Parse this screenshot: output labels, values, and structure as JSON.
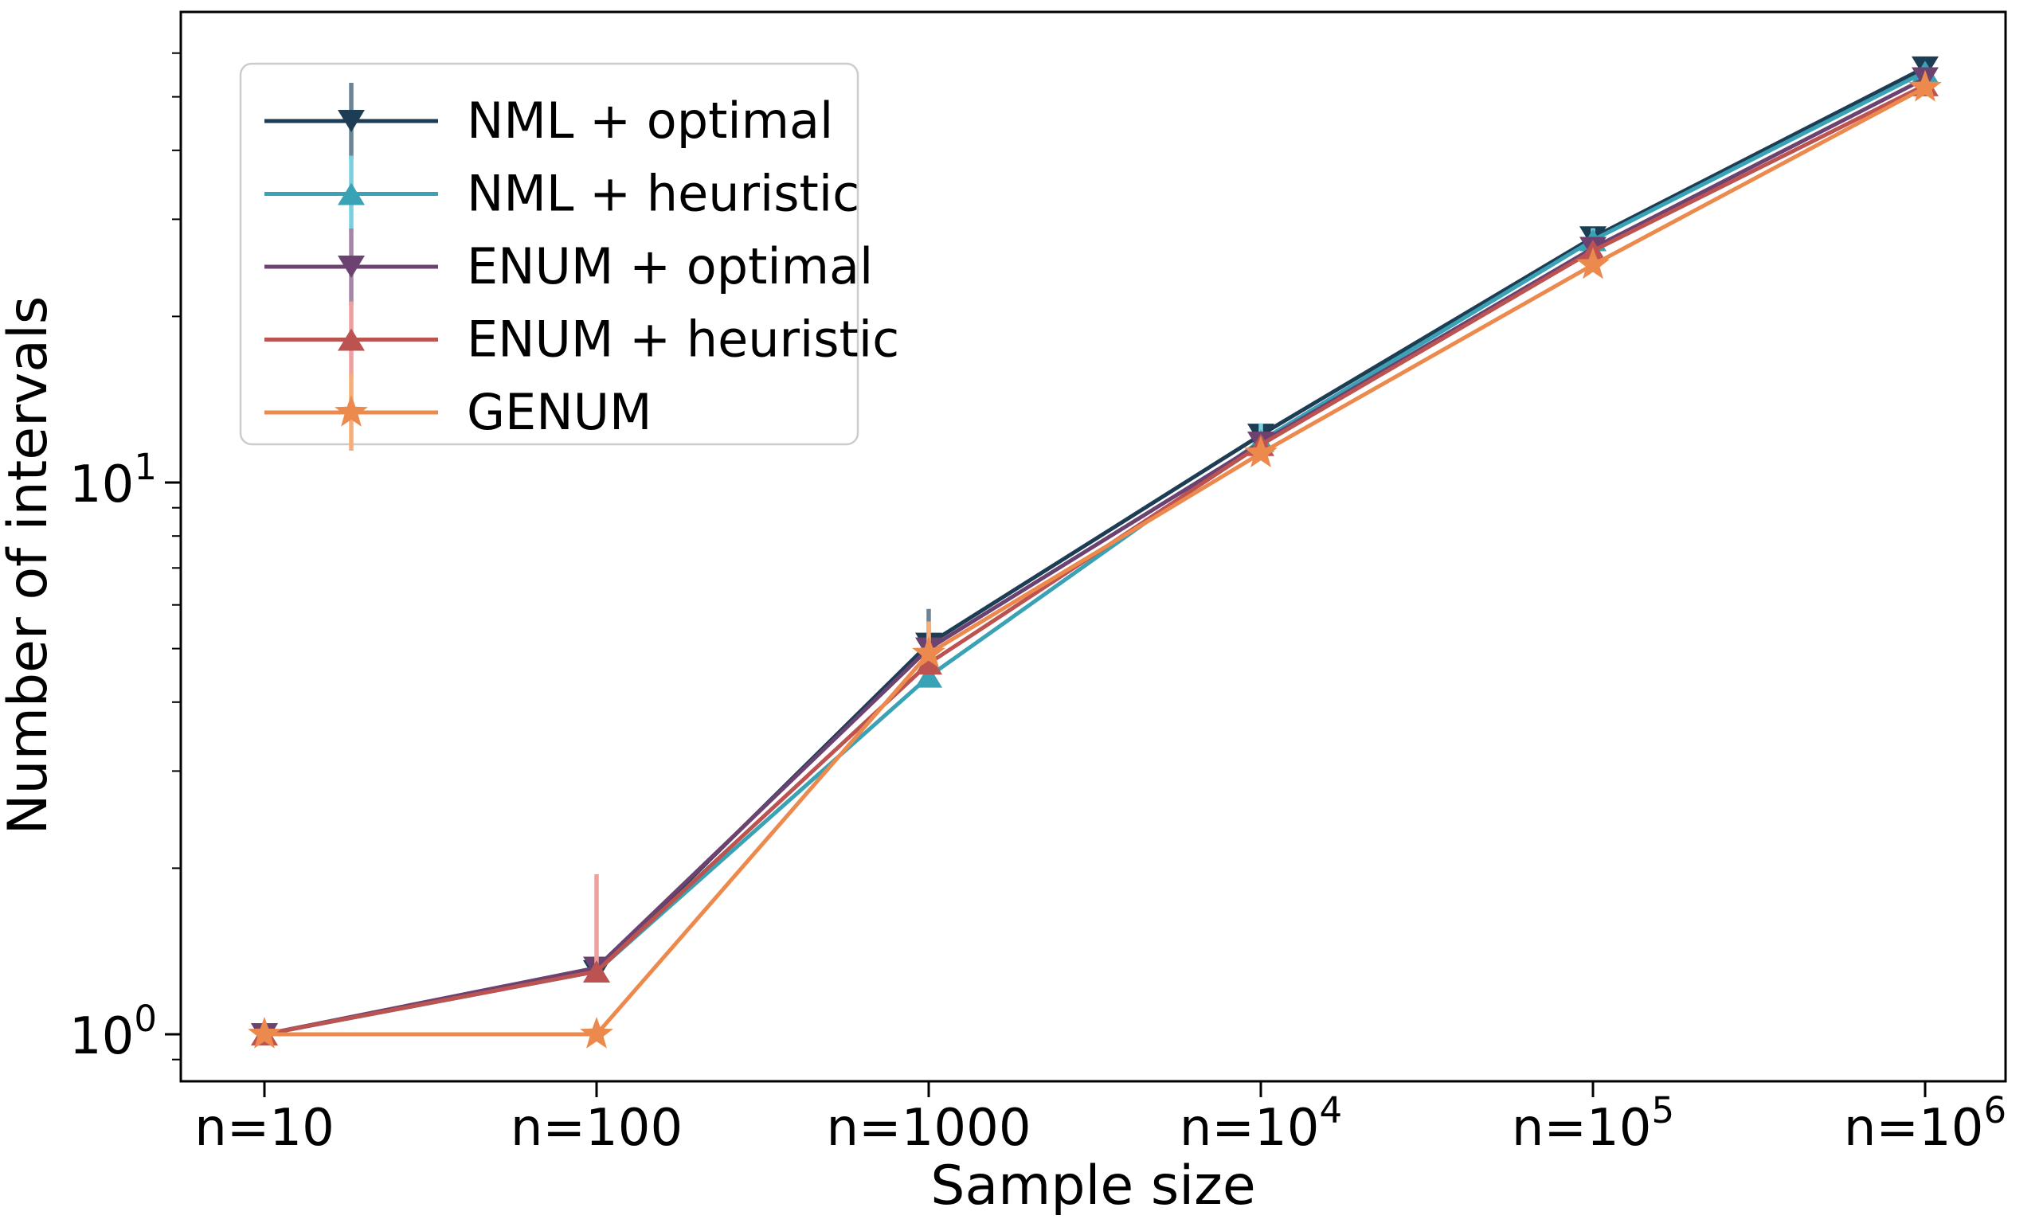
{
  "chart_data": {
    "type": "line",
    "title": "",
    "xlabel": "Sample size",
    "ylabel": "Number of intervals",
    "x_axis": {
      "kind": "categorical",
      "categories": [
        "n=10",
        "n=100",
        "n=1000",
        "n=10^4",
        "n=10^5",
        "n=10^6"
      ]
    },
    "y_axis": {
      "scale": "log",
      "major_ticks": [
        {
          "value": 1,
          "label": "10^0"
        },
        {
          "value": 10,
          "label": "10^1"
        }
      ],
      "minor_ticks": [
        0.9,
        2,
        3,
        4,
        5,
        6,
        7,
        8,
        9,
        20,
        30,
        40,
        50,
        60
      ],
      "range": [
        0.82,
        71
      ]
    },
    "grid": false,
    "legend": {
      "position": "upper-left",
      "border_color": "#cccccc",
      "background": "#ffffff"
    },
    "series": [
      {
        "name": "NML + optimal",
        "marker": "triangle-down",
        "color": "#1d3d54",
        "error_color": "#6b8496",
        "values": [
          1.0,
          1.3,
          5.1,
          12.2,
          27.8,
          56.5
        ],
        "err_up": [
          0,
          0,
          0.8,
          0.4,
          1.1,
          1.2
        ]
      },
      {
        "name": "NML + heuristic",
        "marker": "triangle-up",
        "color": "#3aa2b5",
        "error_color": "#7ccfe0",
        "values": [
          1.0,
          1.3,
          4.45,
          11.9,
          27.5,
          55.5
        ],
        "err_up": [
          0,
          0,
          0.3,
          0.9,
          1.4,
          0.9
        ]
      },
      {
        "name": "ENUM + optimal",
        "marker": "triangle-down",
        "color": "#6c4370",
        "error_color": "#a487a6",
        "values": [
          1.0,
          1.32,
          5.0,
          11.8,
          26.6,
          54.0
        ],
        "err_up": [
          0,
          0.05,
          0.3,
          0.3,
          0.5,
          0.5
        ]
      },
      {
        "name": "ENUM + heuristic",
        "marker": "triangle-up",
        "color": "#bd5351",
        "error_color": "#eda0a0",
        "values": [
          1.0,
          1.3,
          4.7,
          11.7,
          26.3,
          52.5
        ],
        "err_up": [
          0,
          0.65,
          0.3,
          0.4,
          0.5,
          0.5
        ]
      },
      {
        "name": "GENUM",
        "marker": "star",
        "color": "#ec8a4e",
        "error_color": "#f5ae79",
        "values": [
          1.0,
          1.0,
          4.9,
          11.3,
          24.8,
          52.0
        ],
        "err_up": [
          0,
          0,
          0.7,
          0.3,
          0.6,
          0.5
        ]
      }
    ]
  }
}
